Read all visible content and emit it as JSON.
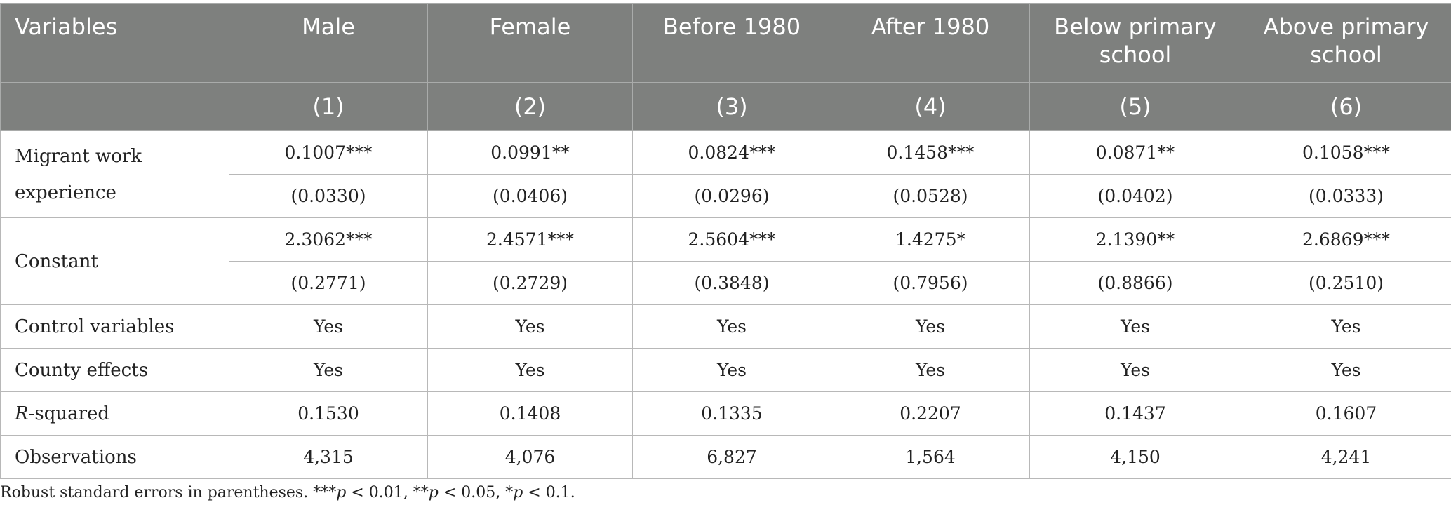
{
  "header": {
    "variables_label": "Variables",
    "columns": [
      "Male",
      "Female",
      "Before 1980",
      "After 1980",
      "Below primary school",
      "Above primary school"
    ],
    "numbers": [
      "(1)",
      "(2)",
      "(3)",
      "(4)",
      "(5)",
      "(6)"
    ]
  },
  "rows": {
    "migrant": {
      "label": "Migrant work experience",
      "coefs": [
        "0.1007***",
        "0.0991**",
        "0.0824***",
        "0.1458***",
        "0.0871**",
        "0.1058***"
      ],
      "se": [
        "(0.0330)",
        "(0.0406)",
        "(0.0296)",
        "(0.0528)",
        "(0.0402)",
        "(0.0333)"
      ]
    },
    "constant": {
      "label": "Constant",
      "coefs": [
        "2.3062***",
        "2.4571***",
        "2.5604***",
        "1.4275*",
        "2.1390**",
        "2.6869***"
      ],
      "se": [
        "(0.2771)",
        "(0.2729)",
        "(0.3848)",
        "(0.7956)",
        "(0.8866)",
        "(0.2510)"
      ]
    },
    "controls": {
      "label": "Control variables",
      "values": [
        "Yes",
        "Yes",
        "Yes",
        "Yes",
        "Yes",
        "Yes"
      ]
    },
    "county": {
      "label": "County effects",
      "values": [
        "Yes",
        "Yes",
        "Yes",
        "Yes",
        "Yes",
        "Yes"
      ]
    },
    "rsquared": {
      "label_italic": "R",
      "label_rest": "-squared",
      "values": [
        "0.1530",
        "0.1408",
        "0.1335",
        "0.2207",
        "0.1437",
        "0.1607"
      ]
    },
    "observations": {
      "label": "Observations",
      "values": [
        "4,315",
        "4,076",
        "6,827",
        "1,564",
        "4,150",
        "4,241"
      ]
    }
  },
  "note": {
    "prefix": "Robust standard errors in parentheses. ***",
    "p1": "p",
    "mid1": " < 0.01, **",
    "p2": "p",
    "mid2": " < 0.05, *",
    "p3": "p",
    "suffix": " < 0.1."
  }
}
